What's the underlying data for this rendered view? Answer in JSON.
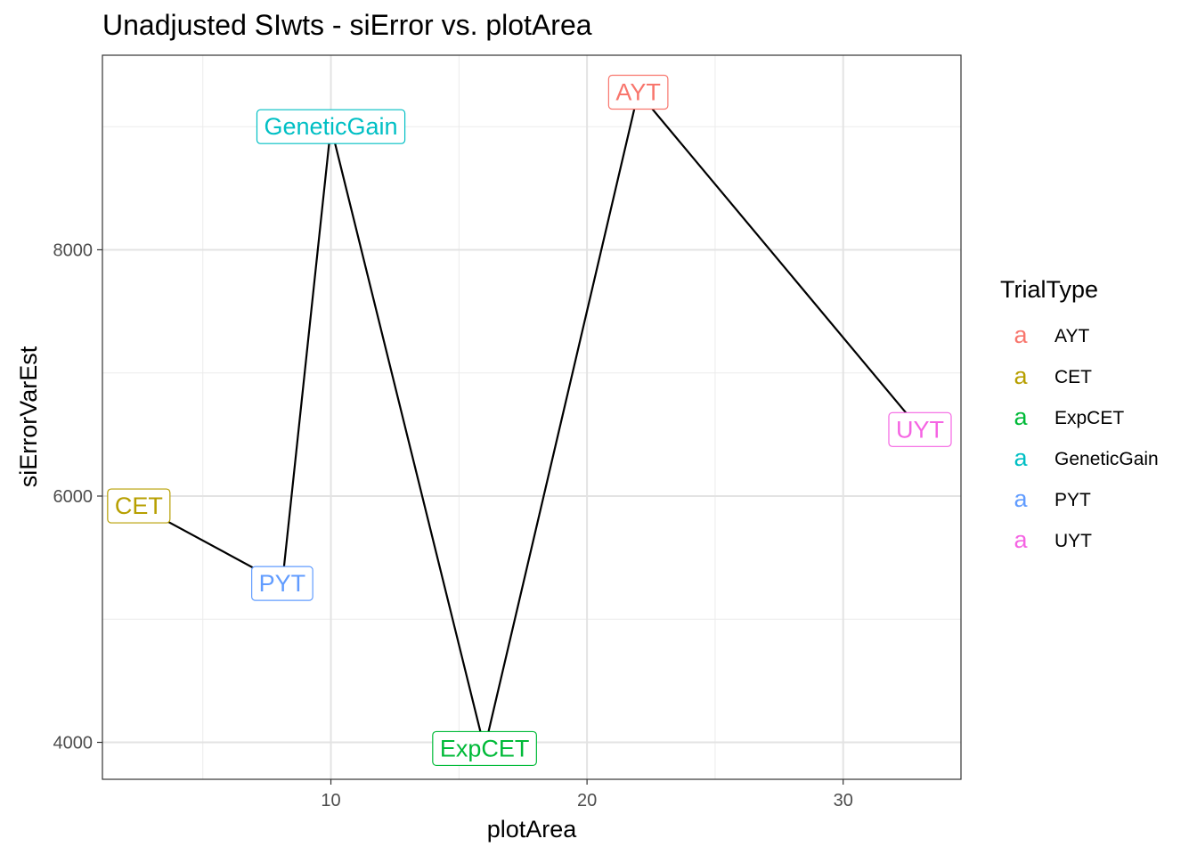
{
  "chart_data": {
    "type": "line",
    "title": "Unadjusted SIwts - siError vs. plotArea",
    "xlabel": "plotArea",
    "ylabel": "siErrorVarEst",
    "xlim": [
      1.08,
      34.6
    ],
    "ylim": [
      3700,
      9580
    ],
    "x_ticks": [
      10,
      20,
      30
    ],
    "x_tick_labels": [
      "10",
      "20",
      "30"
    ],
    "y_ticks": [
      4000,
      6000,
      8000
    ],
    "y_tick_labels": [
      "4000",
      "6000",
      "8000"
    ],
    "x_minor": [
      5,
      15,
      25
    ],
    "y_minor": [
      5000,
      7000,
      9000
    ],
    "grid": true,
    "legend": {
      "title": "TrialType",
      "position": "right",
      "key_glyph": "a",
      "entries": [
        {
          "label": "AYT",
          "color": "#F8766D"
        },
        {
          "label": "CET",
          "color": "#B79F00"
        },
        {
          "label": "ExpCET",
          "color": "#00BA38"
        },
        {
          "label": "GeneticGain",
          "color": "#00BFC4"
        },
        {
          "label": "PYT",
          "color": "#619CFF"
        },
        {
          "label": "UYT",
          "color": "#F564E3"
        }
      ]
    },
    "points": [
      {
        "label": "CET",
        "x": 2.5,
        "y": 5920,
        "color": "#B79F00"
      },
      {
        "label": "PYT",
        "x": 8.1,
        "y": 5290,
        "color": "#619CFF"
      },
      {
        "label": "GeneticGain",
        "x": 10.0,
        "y": 9000,
        "color": "#00BFC4"
      },
      {
        "label": "ExpCET",
        "x": 16.0,
        "y": 3950,
        "color": "#00BA38"
      },
      {
        "label": "AYT",
        "x": 22.0,
        "y": 9280,
        "color": "#F8766D"
      },
      {
        "label": "UYT",
        "x": 33.0,
        "y": 6540,
        "color": "#F564E3"
      }
    ]
  }
}
